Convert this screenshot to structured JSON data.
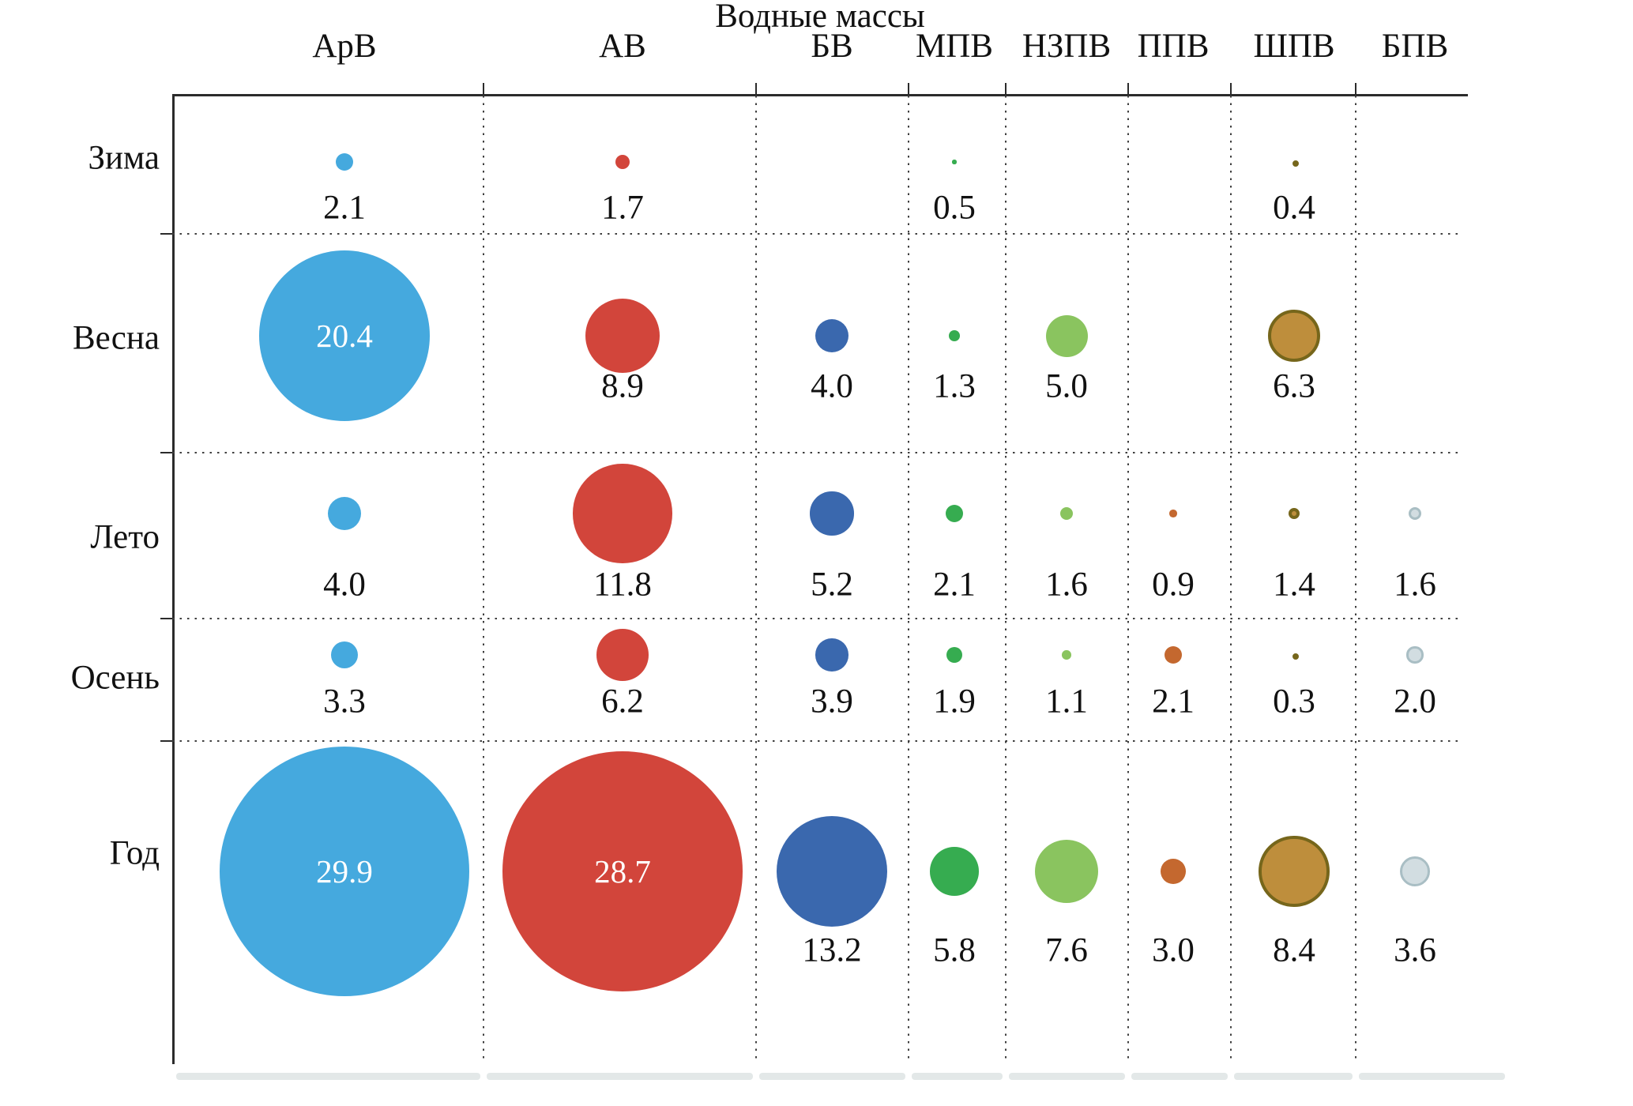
{
  "chart_data": {
    "type": "scatter",
    "variant": "bubble-matrix",
    "title": "Водные массы",
    "grid": "dotted",
    "legend": "none",
    "axis_color": "#2b2b2b",
    "grid_color": "#3f3f3f",
    "bottom_strip_color": "#e3e8e8",
    "inside_label_threshold": 20,
    "inside_label_color": "#ffffff",
    "columns": [
      {
        "key": "arv",
        "label": "АрВ",
        "color": "#45A9DE"
      },
      {
        "key": "av",
        "label": "АВ",
        "color": "#D2453B"
      },
      {
        "key": "bv",
        "label": "БВ",
        "color": "#3A68AE"
      },
      {
        "key": "mpv",
        "label": "МПВ",
        "color": "#36AC50"
      },
      {
        "key": "nzpv",
        "label": "НЗПВ",
        "color": "#8AC45F"
      },
      {
        "key": "ppv",
        "label": "ППВ",
        "color": "#C4682F"
      },
      {
        "key": "shpv",
        "label": "ШПВ",
        "color": "#BE8E3C",
        "stroke": "#76661B",
        "stroke_width": 4
      },
      {
        "key": "bpv",
        "label": "БПВ",
        "color": "#D2DDE1",
        "stroke": "#A9BEC4",
        "stroke_width": 3
      }
    ],
    "rows": [
      {
        "key": "zima",
        "label": "Зима",
        "values": [
          "2.1",
          "1.7",
          null,
          "0.5",
          null,
          null,
          "0.4",
          null
        ]
      },
      {
        "key": "vesna",
        "label": "Весна",
        "values": [
          "20.4",
          "8.9",
          "4.0",
          "1.3",
          "5.0",
          null,
          "6.3",
          null
        ]
      },
      {
        "key": "leto",
        "label": "Лето",
        "values": [
          "4.0",
          "11.8",
          "5.2",
          "2.1",
          "1.6",
          "0.9",
          "1.4",
          "1.6"
        ]
      },
      {
        "key": "osen",
        "label": "Осень",
        "values": [
          "3.3",
          "6.2",
          "3.9",
          "1.9",
          "1.1",
          "2.1",
          "0.3",
          "2.0"
        ]
      },
      {
        "key": "god",
        "label": "Год",
        "values": [
          "29.9",
          "28.7",
          "13.2",
          "5.8",
          "7.6",
          "3.0",
          "8.4",
          "3.6"
        ]
      }
    ]
  }
}
